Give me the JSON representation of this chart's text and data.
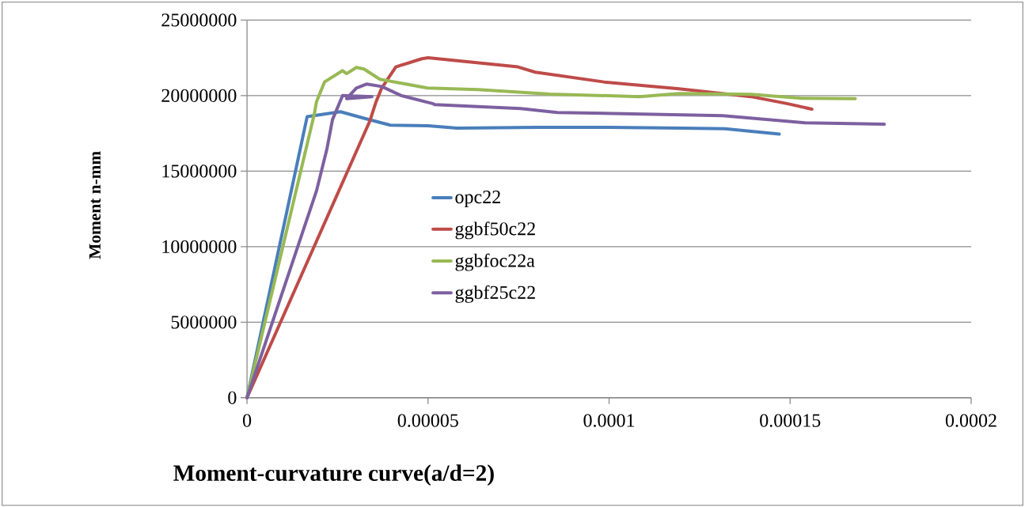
{
  "chart_data": {
    "type": "line",
    "xlabel": "Moment-curvature curve(a/d=2)",
    "ylabel": "Moment n-mm",
    "xlim": [
      0,
      0.0002
    ],
    "xticks": [
      0,
      {
        "value": 5e-05,
        "label": "0.00005"
      },
      {
        "value": 0.0001,
        "label": "0.0001"
      },
      {
        "value": 0.00015,
        "label": "0.00015"
      },
      {
        "value": 0.0002,
        "label": "0.0002"
      }
    ],
    "ylim": [
      0,
      25000000
    ],
    "yticks": [
      0,
      5000000,
      10000000,
      15000000,
      20000000,
      25000000
    ],
    "grid": "y",
    "legend": "left",
    "marker": "none",
    "line_style": "solid",
    "series": [
      {
        "name": "opc22",
        "color": "#4a7ebb",
        "x": [
          0,
          1.66e-05,
          2.58e-05,
          3.23e-05,
          3.96e-05,
          5e-05,
          5.8e-05,
          8e-05,
          0.0001,
          0.00012,
          0.000132,
          0.000147
        ],
        "values": [
          0,
          18600000,
          18930000,
          18500000,
          18040000,
          18000000,
          17850000,
          17900000,
          17900000,
          17850000,
          17800000,
          17450000
        ]
      },
      {
        "name": "ggbf50c22",
        "color": "#be4b48",
        "x": [
          0,
          3.39e-05,
          3.56e-05,
          3.72e-05,
          4.11e-05,
          4.83e-05,
          5e-05,
          7.48e-05,
          7.96e-05,
          9.86e-05,
          0.0001193,
          0.0001392,
          0.0001493,
          0.000156
        ],
        "values": [
          0,
          18300000,
          19560000,
          20500000,
          21900000,
          22440000,
          22500000,
          21900000,
          21550000,
          20900000,
          20450000,
          19930000,
          19460000,
          19100000
        ]
      },
      {
        "name": "ggbfoc22a",
        "color": "#98b954",
        "x": [
          0,
          1.86e-05,
          1.92e-05,
          2.14e-05,
          2.64e-05,
          2.75e-05,
          3.02e-05,
          3.23e-05,
          3.67e-05,
          4.98e-05,
          6.38e-05,
          8.37e-05,
          0.0001084,
          0.0001193,
          0.0001392,
          0.0001532,
          0.000168
        ],
        "values": [
          0,
          18800000,
          19600000,
          20900000,
          21650000,
          21450000,
          21860000,
          21760000,
          21080000,
          20500000,
          20400000,
          20100000,
          19930000,
          20140000,
          20080000,
          19820000,
          19800000
        ]
      },
      {
        "name": "ggbf25c22",
        "color": "#7d60a0",
        "x": [
          0,
          1.92e-05,
          2.21e-05,
          2.36e-05,
          2.64e-05,
          3.45e-05,
          2.75e-05,
          3.02e-05,
          3.3e-05,
          3.72e-05,
          4.26e-05,
          5.14e-05,
          5.18e-05,
          7.56e-05,
          8.57e-05,
          0.0001314,
          0.0001541,
          0.000176
        ],
        "values": [
          0,
          13700000,
          16500000,
          18400000,
          20000000,
          19930000,
          19800000,
          20500000,
          20760000,
          20600000,
          20000000,
          19460000,
          19400000,
          19140000,
          18880000,
          18670000,
          18200000,
          18100000
        ]
      }
    ]
  }
}
